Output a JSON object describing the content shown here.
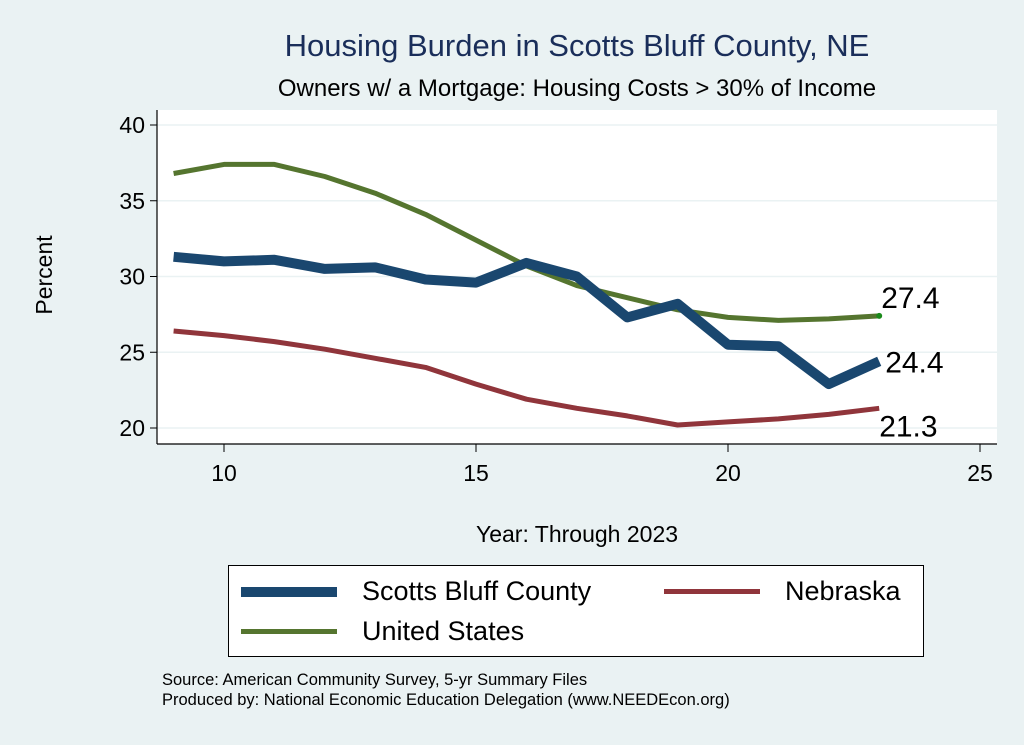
{
  "chart_data": {
    "type": "line",
    "title": "Housing Burden in Scotts Bluff County, NE",
    "subtitle": "Owners w/ a Mortgage: Housing Costs > 30% of Income",
    "xlabel": "Year: Through 2023",
    "ylabel": "Percent",
    "xlim": [
      8.7,
      25.3
    ],
    "ylim": [
      19,
      41
    ],
    "xticks": [
      10,
      15,
      20,
      25
    ],
    "yticks": [
      20,
      25,
      30,
      35,
      40
    ],
    "grid": true,
    "legend_position": "bottom",
    "x": [
      9,
      10,
      11,
      12,
      13,
      14,
      15,
      16,
      17,
      18,
      19,
      20,
      21,
      22,
      23
    ],
    "series": [
      {
        "name": "Scotts Bluff County",
        "color": "#1a476f",
        "width": 10,
        "values": [
          31.3,
          31.0,
          31.1,
          30.5,
          30.6,
          29.8,
          29.6,
          30.9,
          30.0,
          27.3,
          28.2,
          25.5,
          25.4,
          22.9,
          24.4
        ],
        "end_label": "24.4"
      },
      {
        "name": "Nebraska",
        "color": "#90353b",
        "width": 5,
        "values": [
          26.4,
          26.1,
          25.7,
          25.2,
          24.6,
          24.0,
          22.9,
          21.9,
          21.3,
          20.8,
          20.2,
          20.4,
          20.6,
          20.9,
          21.3
        ],
        "end_label": "21.3"
      },
      {
        "name": "United States",
        "color": "#55752f",
        "width": 5,
        "values": [
          36.8,
          37.4,
          37.4,
          36.6,
          35.5,
          34.1,
          32.4,
          30.7,
          29.4,
          28.6,
          27.8,
          27.3,
          27.1,
          27.2,
          27.4
        ],
        "end_label": "27.4"
      }
    ],
    "annotations": [
      "Source: American Community Survey, 5-yr Summary Files",
      "Produced by: National Economic Education Delegation (www.NEEDEcon.org)"
    ]
  },
  "legend": {
    "items": [
      {
        "label": "Scotts Bluff County",
        "color": "#1a476f"
      },
      {
        "label": "Nebraska",
        "color": "#90353b"
      },
      {
        "label": "United States",
        "color": "#55752f"
      }
    ]
  },
  "footer": {
    "source": "Source: American Community Survey, 5-yr Summary Files",
    "produced_by": "Produced by: National Economic Education Delegation (www.NEEDEcon.org)"
  }
}
